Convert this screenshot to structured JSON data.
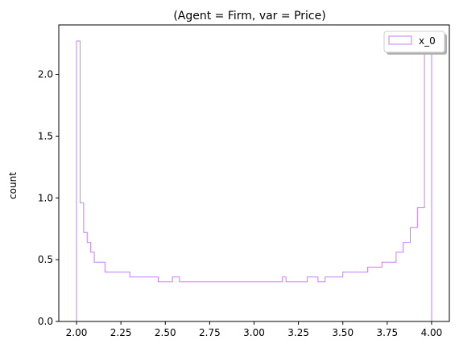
{
  "chart_data": {
    "type": "histogram",
    "title": "(Agent = Firm, var = Price)",
    "xlabel": "",
    "ylabel": "count",
    "xlim": [
      1.9,
      4.1
    ],
    "ylim": [
      0.0,
      2.4
    ],
    "xticks": [
      2.0,
      2.25,
      2.5,
      2.75,
      3.0,
      3.25,
      3.5,
      3.75,
      4.0
    ],
    "xtick_labels": [
      "2.00",
      "2.25",
      "2.50",
      "2.75",
      "3.00",
      "3.25",
      "3.50",
      "3.75",
      "4.00"
    ],
    "yticks": [
      0.0,
      0.5,
      1.0,
      1.5,
      2.0
    ],
    "ytick_labels": [
      "0.0",
      "0.5",
      "1.0",
      "1.5",
      "2.0"
    ],
    "grid": false,
    "legend_position": "top-right",
    "series": [
      {
        "name": "x_0",
        "color": "#c77cff",
        "histtype": "step",
        "bin_edges": [
          2.0,
          2.02,
          2.04,
          2.06,
          2.08,
          2.1,
          2.12,
          2.14,
          2.16,
          2.18,
          2.2,
          2.22,
          2.24,
          2.26,
          2.28,
          2.3,
          2.32,
          2.34,
          2.36,
          2.38,
          2.4,
          2.42,
          2.44,
          2.46,
          2.48,
          2.5,
          2.52,
          2.54,
          2.56,
          2.58,
          2.6,
          2.62,
          2.64,
          2.66,
          2.68,
          2.7,
          2.72,
          2.74,
          2.76,
          2.78,
          2.8,
          2.82,
          2.84,
          2.86,
          2.88,
          2.9,
          2.92,
          2.94,
          2.96,
          2.98,
          3.0,
          3.02,
          3.04,
          3.06,
          3.08,
          3.1,
          3.12,
          3.14,
          3.16,
          3.18,
          3.2,
          3.22,
          3.24,
          3.26,
          3.28,
          3.3,
          3.32,
          3.34,
          3.36,
          3.38,
          3.4,
          3.42,
          3.44,
          3.46,
          3.48,
          3.5,
          3.52,
          3.54,
          3.56,
          3.58,
          3.6,
          3.62,
          3.64,
          3.66,
          3.68,
          3.7,
          3.72,
          3.74,
          3.76,
          3.78,
          3.8,
          3.82,
          3.84,
          3.86,
          3.88,
          3.9,
          3.92,
          3.94,
          3.96,
          3.98,
          4.0
        ],
        "counts": [
          2.27,
          0.96,
          0.72,
          0.64,
          0.56,
          0.48,
          0.48,
          0.48,
          0.4,
          0.4,
          0.4,
          0.4,
          0.4,
          0.4,
          0.4,
          0.36,
          0.36,
          0.36,
          0.36,
          0.36,
          0.36,
          0.36,
          0.36,
          0.32,
          0.32,
          0.32,
          0.32,
          0.36,
          0.36,
          0.32,
          0.32,
          0.32,
          0.32,
          0.32,
          0.32,
          0.32,
          0.32,
          0.32,
          0.32,
          0.32,
          0.32,
          0.32,
          0.32,
          0.32,
          0.32,
          0.32,
          0.32,
          0.32,
          0.32,
          0.32,
          0.32,
          0.32,
          0.32,
          0.32,
          0.32,
          0.32,
          0.32,
          0.32,
          0.36,
          0.32,
          0.32,
          0.32,
          0.32,
          0.32,
          0.32,
          0.36,
          0.36,
          0.36,
          0.32,
          0.32,
          0.36,
          0.36,
          0.36,
          0.36,
          0.36,
          0.4,
          0.4,
          0.4,
          0.4,
          0.4,
          0.4,
          0.4,
          0.44,
          0.44,
          0.44,
          0.44,
          0.48,
          0.48,
          0.48,
          0.48,
          0.56,
          0.56,
          0.64,
          0.64,
          0.76,
          0.76,
          0.92,
          0.92,
          2.27,
          2.27
        ]
      }
    ]
  }
}
